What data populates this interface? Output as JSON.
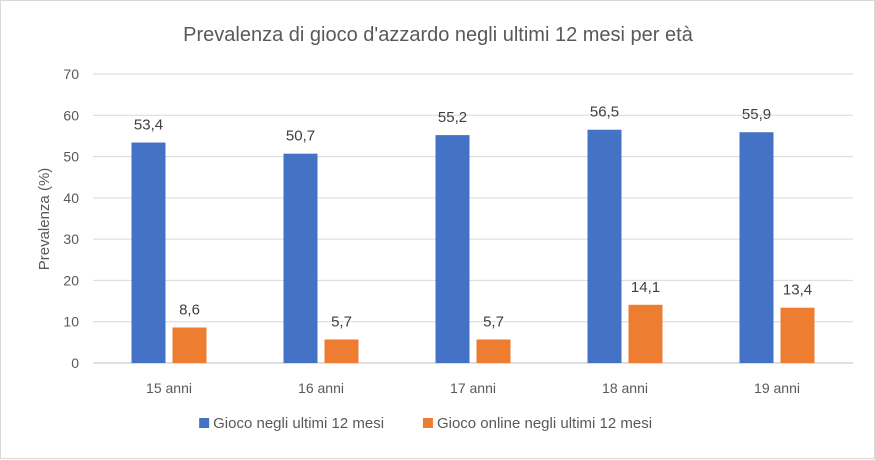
{
  "chart_data": {
    "type": "bar",
    "title": "Prevalenza di gioco d'azzardo negli ultimi 12 mesi per età",
    "xlabel": "",
    "ylabel": "Prevalenza (%)",
    "ylim": [
      0,
      70
    ],
    "yticks": [
      0,
      10,
      20,
      30,
      40,
      50,
      60,
      70
    ],
    "grid": true,
    "legend_position": "bottom",
    "categories": [
      "15 anni",
      "16 anni",
      "17 anni",
      "18 anni",
      "19 anni"
    ],
    "series": [
      {
        "name": "Gioco negli ultimi 12 mesi",
        "color": "#4472c4",
        "values": [
          53.4,
          50.7,
          55.2,
          56.5,
          55.9
        ],
        "labels": [
          "53,4",
          "50,7",
          "55,2",
          "56,5",
          "55,9"
        ]
      },
      {
        "name": "Gioco online negli ultimi 12 mesi",
        "color": "#ed7d31",
        "values": [
          8.6,
          5.7,
          5.7,
          14.1,
          13.4
        ],
        "labels": [
          "8,6",
          "5,7",
          "5,7",
          "14,1",
          "13,4"
        ]
      }
    ]
  }
}
